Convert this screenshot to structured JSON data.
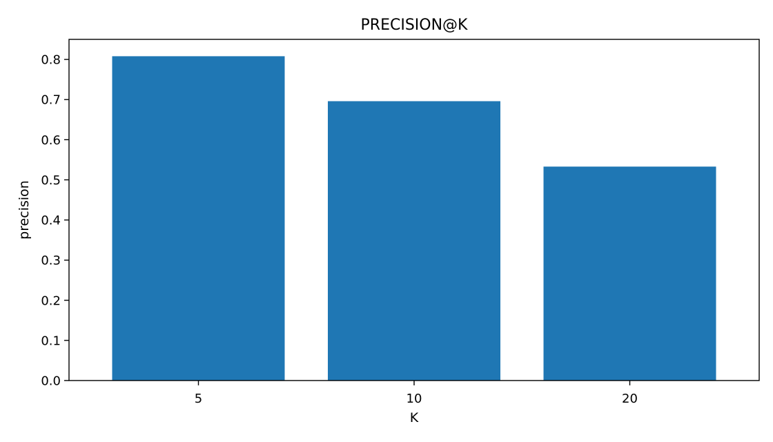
{
  "chart_data": {
    "type": "bar",
    "title": "PRECISION@K",
    "xlabel": "K",
    "ylabel": "precision",
    "categories": [
      "5",
      "10",
      "20"
    ],
    "values": [
      0.808,
      0.696,
      0.533
    ],
    "ylim": [
      0,
      0.85
    ],
    "yticks": [
      0.0,
      0.1,
      0.2,
      0.3,
      0.4,
      0.5,
      0.6,
      0.7,
      0.8
    ],
    "ytick_labels": [
      "0.0",
      "0.1",
      "0.2",
      "0.3",
      "0.4",
      "0.5",
      "0.6",
      "0.7",
      "0.8"
    ],
    "grid": false,
    "legend": "none",
    "colors": {
      "bar": "#1f77b4",
      "axis": "#000000",
      "background": "#ffffff"
    }
  }
}
